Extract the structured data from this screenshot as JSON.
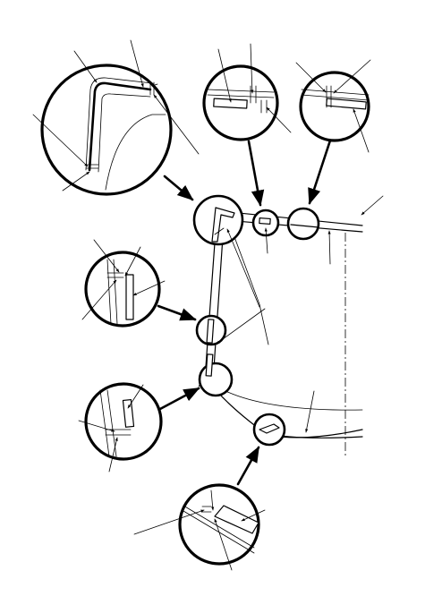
{
  "diagram": {
    "kind": "technical-illustration",
    "labels": [],
    "color_line": "#000000",
    "color_background": "#ffffff"
  }
}
